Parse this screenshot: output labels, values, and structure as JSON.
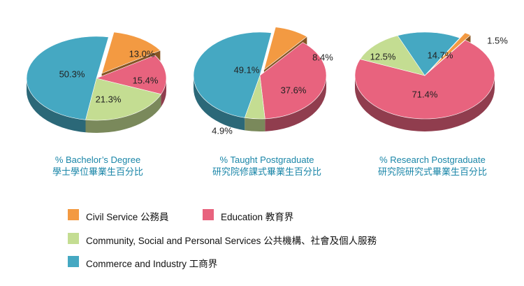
{
  "colors": {
    "civil_service": "#f39a42",
    "education": "#e8637e",
    "community": "#c4dd92",
    "commerce": "#45a8c2"
  },
  "legend": [
    {
      "key": "civil_service",
      "label": "Civil Service 公務員"
    },
    {
      "key": "education",
      "label": "Education 教育界"
    },
    {
      "key": "community",
      "label": "Community, Social and Personal Services 公共機構、社會及個人服務"
    },
    {
      "key": "commerce",
      "label": "Commerce and Industry 工商界"
    }
  ],
  "chart_data": [
    {
      "type": "pie",
      "title": "% Bachelor’s Degree",
      "subtitle": "學士學位畢業生百分比",
      "slices": [
        {
          "key": "civil_service",
          "value": 13.0,
          "label": "13.0%",
          "exploded": true
        },
        {
          "key": "education",
          "value": 15.4,
          "label": "15.4%"
        },
        {
          "key": "community",
          "value": 21.3,
          "label": "21.3%"
        },
        {
          "key": "commerce",
          "value": 50.3,
          "label": "50.3%"
        }
      ]
    },
    {
      "type": "pie",
      "title": "% Taught Postgraduate",
      "subtitle": "研究院修課式畢業生百分比",
      "slices": [
        {
          "key": "civil_service",
          "value": 8.4,
          "label": "8.4%",
          "exploded": true
        },
        {
          "key": "education",
          "value": 37.6,
          "label": "37.6%"
        },
        {
          "key": "community",
          "value": 4.9,
          "label": "4.9%"
        },
        {
          "key": "commerce",
          "value": 49.1,
          "label": "49.1%"
        }
      ]
    },
    {
      "type": "pie",
      "title": "% Research Postgraduate",
      "subtitle": "研究院研究式畢業生百分比",
      "slices": [
        {
          "key": "civil_service",
          "value": 1.5,
          "label": "1.5%",
          "exploded": true
        },
        {
          "key": "education",
          "value": 71.4,
          "label": "71.4%"
        },
        {
          "key": "community",
          "value": 12.5,
          "label": "12.5%"
        },
        {
          "key": "commerce",
          "value": 14.7,
          "label": "14.7%"
        }
      ]
    }
  ]
}
